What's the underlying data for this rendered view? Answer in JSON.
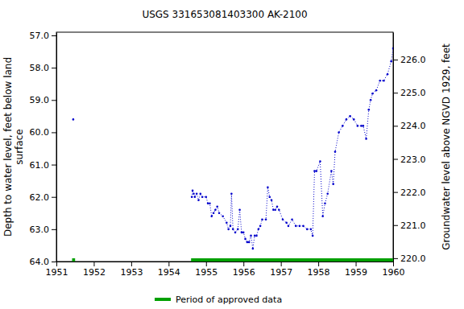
{
  "chart_data": {
    "type": "line",
    "title": "USGS 331653081403300 AK-2100",
    "y_label": [
      "Depth to water level, feet below land",
      "surface"
    ],
    "y2_label": "Groundwater level above NGVD 1929, feet",
    "xlim": [
      1951,
      1960
    ],
    "xticks": [
      1951,
      1952,
      1953,
      1954,
      1955,
      1956,
      1957,
      1958,
      1959,
      1960
    ],
    "ylim": [
      56.9,
      64.0
    ],
    "yticks": [
      {
        "value": 57,
        "label": "57.0"
      },
      {
        "value": 58,
        "label": "58.0"
      },
      {
        "value": 59,
        "label": "59.0"
      },
      {
        "value": 60,
        "label": "60.0"
      },
      {
        "value": 61,
        "label": "61.0"
      },
      {
        "value": 62,
        "label": "62.0"
      },
      {
        "value": 63,
        "label": "63.0"
      },
      {
        "value": 64,
        "label": "64.0"
      }
    ],
    "y2lim": [
      226.83,
      219.9
    ],
    "y2ticks": [
      {
        "value": 220,
        "label": "220.0"
      },
      {
        "value": 221,
        "label": "221.0"
      },
      {
        "value": 222,
        "label": "222.0"
      },
      {
        "value": 223,
        "label": "223.0"
      },
      {
        "value": 224,
        "label": "224.0"
      },
      {
        "value": 225,
        "label": "225.0"
      },
      {
        "value": 226,
        "label": "226.0"
      }
    ],
    "grid": false,
    "x": [
      1951.45,
      1953.0,
      1954.62,
      1954.64,
      1954.67,
      1954.7,
      1954.75,
      1954.8,
      1954.85,
      1954.9,
      1955.0,
      1955.05,
      1955.1,
      1955.15,
      1955.2,
      1955.25,
      1955.3,
      1955.35,
      1955.45,
      1955.55,
      1955.6,
      1955.65,
      1955.68,
      1955.72,
      1955.78,
      1955.85,
      1955.9,
      1955.95,
      1956.0,
      1956.05,
      1956.1,
      1956.15,
      1956.2,
      1956.25,
      1956.3,
      1956.35,
      1956.4,
      1956.45,
      1956.5,
      1956.6,
      1956.65,
      1956.7,
      1956.75,
      1956.8,
      1956.85,
      1956.9,
      1956.95,
      1957.05,
      1957.15,
      1957.2,
      1957.3,
      1957.4,
      1957.5,
      1957.6,
      1957.7,
      1957.8,
      1957.85,
      1957.9,
      1957.95,
      1958.05,
      1958.12,
      1958.18,
      1958.25,
      1958.35,
      1958.4,
      1958.45,
      1958.55,
      1958.65,
      1958.75,
      1958.85,
      1958.95,
      1959.05,
      1959.15,
      1959.2,
      1959.28,
      1959.35,
      1959.4,
      1959.45,
      1959.55,
      1959.65,
      1959.75,
      1959.85,
      1959.95,
      1960.0
    ],
    "series": [
      {
        "name": "Depth to water level",
        "color": "#0000cc",
        "marker": "point",
        "line_style": "dotted",
        "values": [
          59.6,
          null,
          62.0,
          61.8,
          61.9,
          62.0,
          61.9,
          62.1,
          61.9,
          62.0,
          62.0,
          62.2,
          62.2,
          62.6,
          62.5,
          62.4,
          62.3,
          62.5,
          62.6,
          62.8,
          63.0,
          62.9,
          61.9,
          63.0,
          63.1,
          63.0,
          62.4,
          63.1,
          63.1,
          63.3,
          63.4,
          63.4,
          63.2,
          63.6,
          63.2,
          63.2,
          63.0,
          62.9,
          62.7,
          62.7,
          61.7,
          62.0,
          62.1,
          62.4,
          62.4,
          62.3,
          62.4,
          62.7,
          62.8,
          62.9,
          62.7,
          62.9,
          62.9,
          62.9,
          63.0,
          63.0,
          63.2,
          61.2,
          61.2,
          60.9,
          62.6,
          62.2,
          61.9,
          61.2,
          61.6,
          60.6,
          60.0,
          59.8,
          59.6,
          59.5,
          59.6,
          59.8,
          59.8,
          59.8,
          60.2,
          59.3,
          59.0,
          58.8,
          58.7,
          58.4,
          58.4,
          58.2,
          57.8,
          57.4
        ]
      }
    ],
    "approved_periods": {
      "name": "Period of approved data",
      "color": "#00a000",
      "ranges": [
        [
          1951.42,
          1951.5
        ],
        [
          1954.6,
          1960.0
        ]
      ]
    },
    "legend": "bottom"
  }
}
